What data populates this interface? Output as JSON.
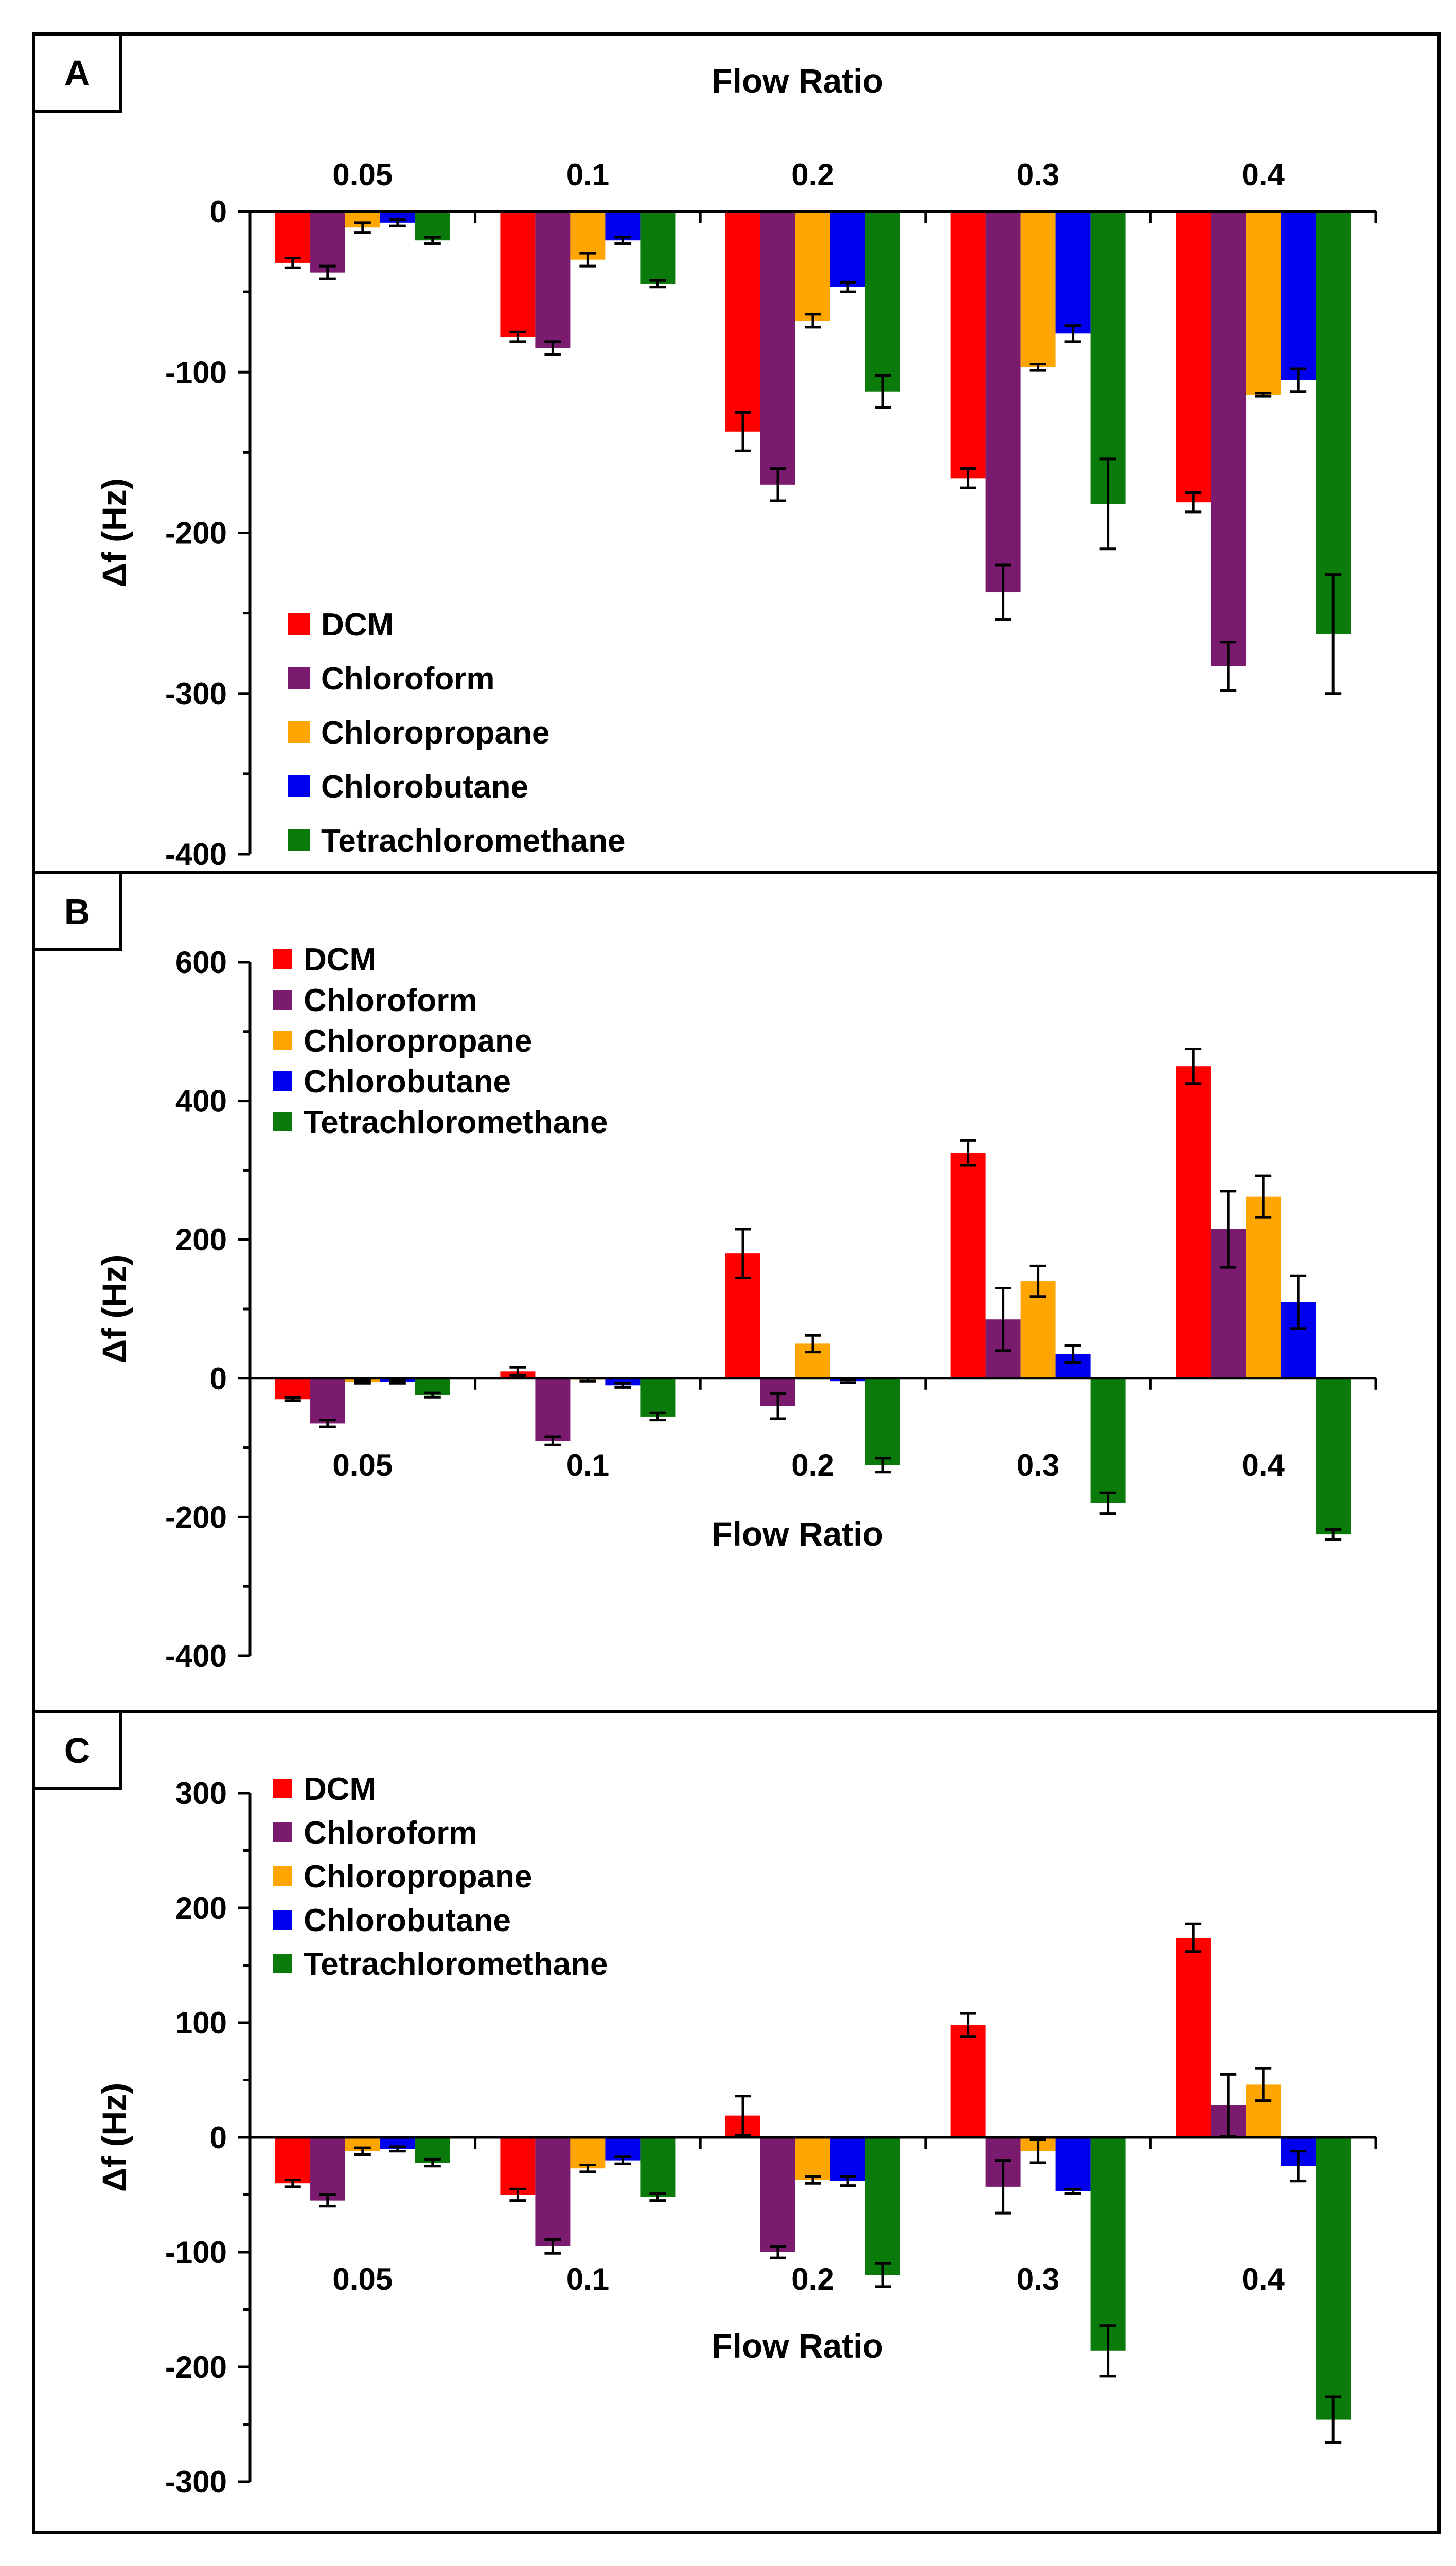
{
  "figure": {
    "series_colors": {
      "DCM": "#ff0000",
      "Chloroform": "#7b1b6f",
      "Chloropropane": "#ffa500",
      "Chlorobutane": "#0000ee",
      "Tetrachloromethane": "#0a7a0a"
    }
  },
  "chart_data": [
    {
      "panel_label": "A",
      "type": "bar",
      "xlabel": "Flow Ratio",
      "ylabel": "Δf (Hz)",
      "ylim": [
        -400,
        0
      ],
      "yticks": [
        0,
        -100,
        -200,
        -300,
        -400
      ],
      "categories": [
        "0.05",
        "0.1",
        "0.2",
        "0.3",
        "0.4"
      ],
      "legend_position": "bottom-left",
      "series": [
        {
          "name": "DCM",
          "values": [
            -32,
            -78,
            -137,
            -166,
            -181
          ],
          "errors": [
            3,
            3,
            12,
            6,
            6
          ]
        },
        {
          "name": "Chloroform",
          "values": [
            -38,
            -85,
            -170,
            -237,
            -283
          ],
          "errors": [
            4,
            4,
            10,
            17,
            15
          ]
        },
        {
          "name": "Chloropropane",
          "values": [
            -10,
            -30,
            -68,
            -97,
            -114
          ],
          "errors": [
            3,
            4,
            4,
            2,
            1
          ]
        },
        {
          "name": "Chlorobutane",
          "values": [
            -7,
            -18,
            -47,
            -76,
            -105
          ],
          "errors": [
            2,
            2,
            3,
            5,
            7
          ]
        },
        {
          "name": "Tetrachloromethane",
          "values": [
            -18,
            -45,
            -112,
            -182,
            -263
          ],
          "errors": [
            2,
            2,
            10,
            28,
            37
          ]
        }
      ]
    },
    {
      "panel_label": "B",
      "type": "bar",
      "xlabel": "Flow Ratio",
      "ylabel": "Δf (Hz)",
      "ylim": [
        -400,
        600
      ],
      "yticks": [
        600,
        400,
        200,
        0,
        -200,
        -400
      ],
      "categories": [
        "0.05",
        "0.1",
        "0.2",
        "0.3",
        "0.4"
      ],
      "legend_position": "top-left",
      "series": [
        {
          "name": "DCM",
          "values": [
            -30,
            10,
            180,
            325,
            450
          ],
          "errors": [
            2,
            6,
            35,
            18,
            25
          ]
        },
        {
          "name": "Chloroform",
          "values": [
            -65,
            -90,
            -40,
            85,
            215
          ],
          "errors": [
            5,
            6,
            18,
            45,
            55
          ]
        },
        {
          "name": "Chloropropane",
          "values": [
            -5,
            -2,
            50,
            140,
            262
          ],
          "errors": [
            2,
            2,
            12,
            22,
            30
          ]
        },
        {
          "name": "Chlorobutane",
          "values": [
            -5,
            -10,
            -4,
            35,
            110
          ],
          "errors": [
            2,
            3,
            2,
            12,
            38
          ]
        },
        {
          "name": "Tetrachloromethane",
          "values": [
            -24,
            -55,
            -125,
            -180,
            -225
          ],
          "errors": [
            3,
            5,
            10,
            15,
            7
          ]
        }
      ]
    },
    {
      "panel_label": "C",
      "type": "bar",
      "xlabel": "Flow Ratio",
      "ylabel": "Δf (Hz)",
      "ylim": [
        -300,
        300
      ],
      "yticks": [
        300,
        200,
        100,
        0,
        -100,
        -200,
        -300
      ],
      "categories": [
        "0.05",
        "0.1",
        "0.2",
        "0.3",
        "0.4"
      ],
      "legend_position": "top-left",
      "series": [
        {
          "name": "DCM",
          "values": [
            -40,
            -50,
            19,
            98,
            174
          ],
          "errors": [
            3,
            5,
            17,
            10,
            12
          ]
        },
        {
          "name": "Chloroform",
          "values": [
            -55,
            -95,
            -100,
            -43,
            28
          ],
          "errors": [
            5,
            6,
            5,
            23,
            27
          ]
        },
        {
          "name": "Chloropropane",
          "values": [
            -12,
            -27,
            -37,
            -12,
            46
          ],
          "errors": [
            3,
            3,
            3,
            10,
            14
          ]
        },
        {
          "name": "Chlorobutane",
          "values": [
            -10,
            -20,
            -38,
            -47,
            -25
          ],
          "errors": [
            2,
            3,
            4,
            2,
            13
          ]
        },
        {
          "name": "Tetrachloromethane",
          "values": [
            -22,
            -52,
            -120,
            -186,
            -246
          ],
          "errors": [
            3,
            3,
            10,
            22,
            20
          ]
        }
      ]
    }
  ]
}
